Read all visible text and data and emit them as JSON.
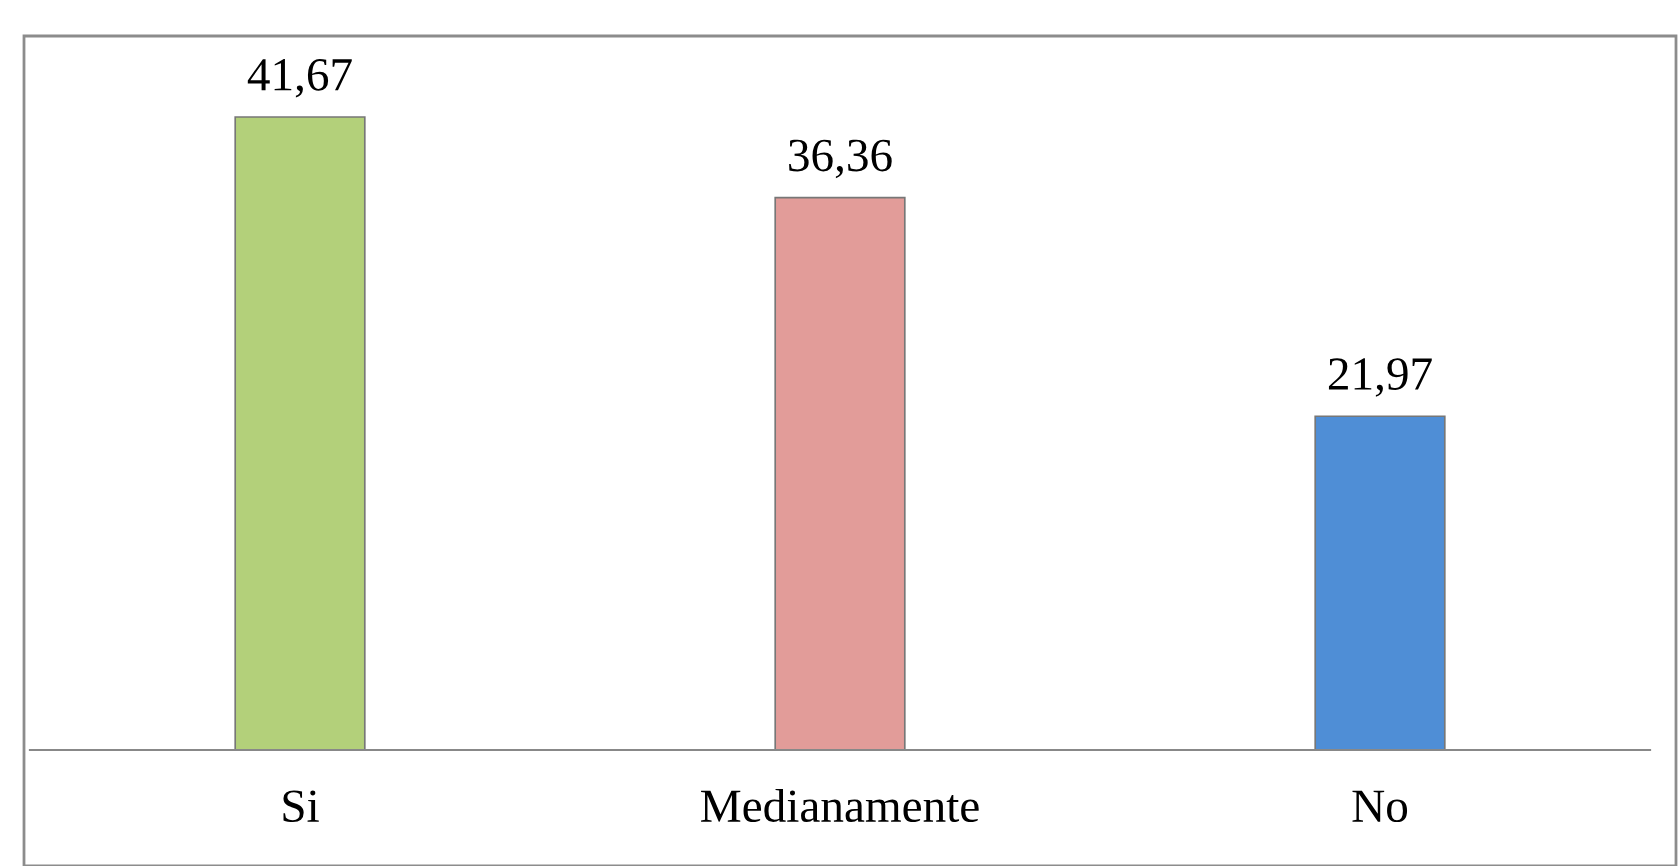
{
  "chart_data": {
    "type": "bar",
    "categories": [
      "Si",
      "Medianamente",
      "No"
    ],
    "values": [
      41.67,
      36.36,
      21.97
    ],
    "colors": [
      "#b3d07a",
      "#e29c99",
      "#4f8ed6"
    ],
    "value_labels": [
      "41,67",
      "36,36",
      "21,97"
    ],
    "grid": false,
    "legend": false,
    "tick_labels": "x"
  }
}
